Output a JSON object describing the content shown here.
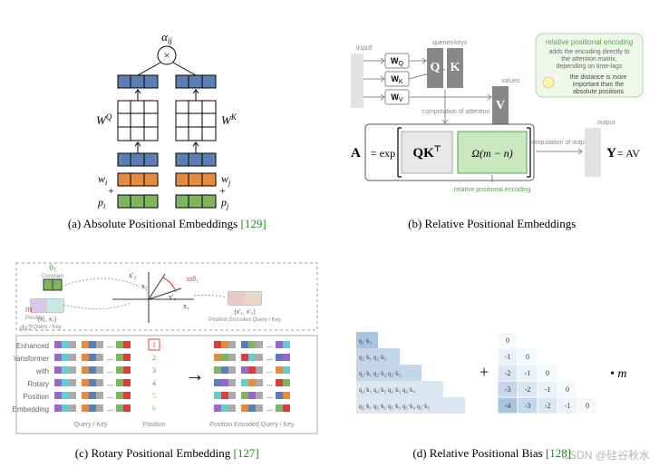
{
  "watermark": "CSDN @硅谷秋水",
  "panels": {
    "a": {
      "caption_prefix": "(a) Absolute Positional Embeddings",
      "ref": "[129]",
      "labels": {
        "alpha": "α",
        "alpha_sub": "ij",
        "times": "×",
        "WQ": "W",
        "WQ_sup": "Q",
        "WK": "W",
        "WK_sup": "K",
        "wi": "w",
        "wi_sub": "i",
        "wj": "w",
        "wj_sub": "j",
        "pi": "p",
        "pi_sub": "i",
        "pj": "p",
        "pj_sub": "j",
        "plus": "+"
      },
      "colors": {
        "blue": "#5b7fb5",
        "orange": "#e38b3f",
        "green": "#7fb560",
        "black": "#000000",
        "grid": "#000000"
      }
    },
    "b": {
      "caption_prefix": "(b) Relative Positional Embeddings",
      "ref": "",
      "labels": {
        "input": "input",
        "queries": "queries",
        "keys": "keys",
        "values": "values",
        "WQ": "W",
        "WQ_sub": "Q",
        "WK": "W",
        "WK_sub": "K",
        "WV": "W",
        "WV_sub": "V",
        "Q": "Q",
        "K": "K",
        "V": "V",
        "comp_att": "computation of attention",
        "A_eq": "A",
        "eq_exp": "= exp",
        "QKT": "QK",
        "T_sup": "⊤",
        "omega": "Ω(m − n)",
        "rel_enc": "relative positional encoding",
        "comp_out": "computation of output",
        "output": "output",
        "Y_eq": "Y",
        "eq_AV": "= AV",
        "note_title": "relative positional encoding",
        "note_line1": "adds the encoding directly to",
        "note_line2": "the attention matrix,",
        "note_line3": "depending on time-lags",
        "note_line4": "the distance is more",
        "note_line5": "important than the",
        "note_line6": "absolute positions"
      },
      "colors": {
        "grey_box": "#e2e2e2",
        "dark_box": "#888888",
        "green_box": "#a8d8a0",
        "green_border": "#5aa050",
        "note_bg": "#eef7ea",
        "outline": "#333333",
        "text": "#5a5a5a"
      }
    },
    "c": {
      "caption_prefix": "(c) Rotary Positional Embedding",
      "ref": "[127]",
      "labels": {
        "theta": "θ₁",
        "constant": "Constant",
        "xpair_l": "(x₁, x₂)",
        "qk": "Query / Key",
        "xprime_t": "x'₂",
        "x2": "x₂",
        "xprime_r": "x'₁",
        "x1": "x₁",
        "mtheta": "mθ₁",
        "xpair_r": "(x'₁, x'₂)",
        "pos_enc_qk": "Position Encoded Query / Key",
        "m_lbl": "m",
        "pos": "Position",
        "d2": "d=2",
        "row1": "Enhanced",
        "row2": "Transformer",
        "row3": "with",
        "row4": "Rotary",
        "row5": "Position",
        "row6": "Embedding",
        "p1": "1",
        "p2": "2",
        "p3": "3",
        "p4": "4",
        "p5": "5",
        "p6": "6",
        "qk_bottom": "Query / Key",
        "pos_bottom": "Position",
        "enc_bottom": "Position Encoded Query / Key",
        "arrow": "→"
      },
      "colors": {
        "outline": "#777777",
        "green": "#7fb560",
        "red": "#d84040",
        "purple": "#9966cc",
        "teal": "#66cccc",
        "orange": "#e38b3f",
        "blue": "#5b7fb5",
        "box_red": "#d84040",
        "grey": "#aaaaaa"
      }
    },
    "d": {
      "caption_prefix": "(d) Relative Positional Bias",
      "ref": "[128]",
      "labels": {
        "plus": "+",
        "dot_m": "• m",
        "q1k1": "q₁·k₁",
        "q2": "q₂·k₁  q₂·k₂",
        "q3": "q₃·k₁  q₃·k₂  q₃·k₃",
        "q4": "q₄·k₁  q₄·k₂  q₄·k₃  q₄·k₄",
        "q5": "q₅·k₁  q₅·k₂  q₅·k₃  q₅·k₄  q₅·k₅"
      },
      "bias_matrix": [
        [
          "0",
          "",
          "",
          "",
          ""
        ],
        [
          "-1",
          "0",
          "",
          "",
          ""
        ],
        [
          "-2",
          "-1",
          "0",
          "",
          ""
        ],
        [
          "-3",
          "-2",
          "-1",
          "0",
          ""
        ],
        [
          "-4",
          "-3",
          "-2",
          "-1",
          "0"
        ]
      ],
      "colors": {
        "blue1": "#a7c4e0",
        "blue2": "#c3d6ea",
        "blue3": "#dae6f2",
        "blue4": "#ecf2f8",
        "blue5": "#f6f9fc",
        "outline": "#999999"
      }
    }
  }
}
